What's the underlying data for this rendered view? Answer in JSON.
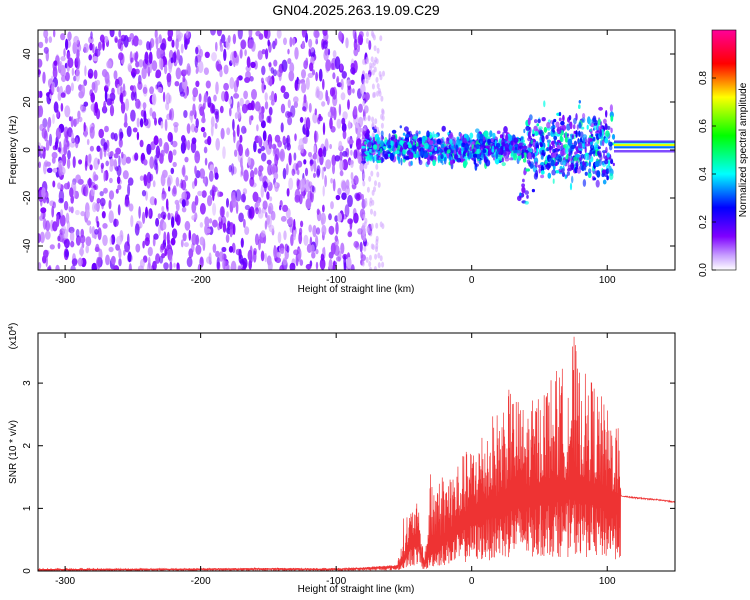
{
  "title": "GN04.2025.263.19.09.C29",
  "chart_data": [
    {
      "type": "heatmap",
      "xlabel": "Height of straight line (km)",
      "ylabel": "Frequency (Hz)",
      "xlim": [
        -320,
        150
      ],
      "ylim": [
        -50,
        50
      ],
      "xticks": [
        -300,
        -200,
        -100,
        0,
        100
      ],
      "yticks": [
        -40,
        -20,
        0,
        20,
        40
      ],
      "colorbar": {
        "label": "Normalized spectral amplitude",
        "range": [
          0,
          1
        ],
        "ticks": [
          0.0,
          0.2,
          0.4,
          0.6,
          0.8
        ],
        "colormap": [
          "#ffffff",
          "#7f00ff",
          "#0000ff",
          "#00ffff",
          "#00ff00",
          "#ffff00",
          "#ff0000",
          "#ff00aa"
        ]
      },
      "regions": [
        {
          "x_range": [
            -320,
            -75
          ],
          "f_range": [
            -50,
            50
          ],
          "amplitude": 0.1,
          "pattern": "scattered noise"
        },
        {
          "x_range": [
            -80,
            105
          ],
          "f_range": [
            -8,
            10
          ],
          "amplitude": 0.3,
          "pattern": "band centered near 0 Hz"
        },
        {
          "x_range": [
            105,
            150
          ],
          "f_range": [
            -2,
            4
          ],
          "amplitude": 0.75,
          "pattern": "narrow line at 2 Hz"
        }
      ]
    },
    {
      "type": "line",
      "xlabel": "Height of straight line (km)",
      "ylabel": "SNR (10 * v/v)",
      "y_scale_label": "(x10",
      "y_scale_exp": "4",
      "xlim": [
        -320,
        150
      ],
      "ylim": [
        0,
        3.8
      ],
      "xticks": [
        -300,
        -200,
        -100,
        0,
        100
      ],
      "yticks": [
        0,
        1,
        2,
        3
      ],
      "color": "#ee3333",
      "series": [
        {
          "x": [
            -320,
            -250,
            -150,
            -100,
            -80,
            -70,
            -55,
            -50,
            -45,
            -40,
            -35,
            -30,
            -20,
            -10,
            0,
            10,
            20,
            25,
            30,
            40,
            50,
            60,
            70,
            75,
            80,
            90,
            100,
            108,
            110,
            120,
            130,
            140,
            150
          ],
          "y": [
            0.03,
            0.03,
            0.04,
            0.03,
            0.05,
            0.06,
            0.08,
            0.2,
            0.5,
            0.6,
            0.1,
            0.4,
            0.6,
            0.8,
            1.0,
            1.1,
            1.2,
            1.3,
            1.4,
            1.35,
            1.4,
            1.5,
            1.45,
            1.6,
            1.5,
            1.4,
            1.3,
            1.2,
            1.2,
            1.17,
            1.15,
            1.13,
            1.1
          ],
          "peak_envelope": [
            0.03,
            0.04,
            0.05,
            0.05,
            0.06,
            0.08,
            0.1,
            0.9,
            1.0,
            1.1,
            0.2,
            1.7,
            1.6,
            1.8,
            2.0,
            2.4,
            2.6,
            2.9,
            2.9,
            2.6,
            2.9,
            3.2,
            3.3,
            3.85,
            3.2,
            3.1,
            2.6,
            2.5,
            1.25,
            1.18,
            1.16,
            1.14,
            1.12
          ]
        }
      ]
    }
  ]
}
